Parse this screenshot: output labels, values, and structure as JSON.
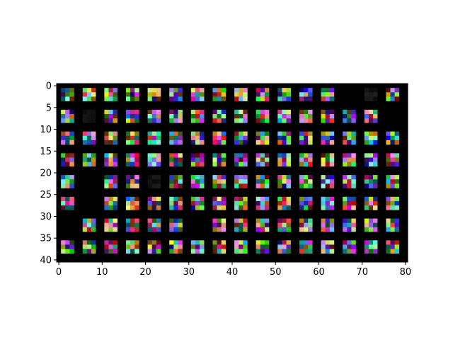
{
  "chart_data": {
    "type": "heatmap",
    "title": "",
    "xlabel": "",
    "ylabel": "",
    "xlim": [
      0,
      81
    ],
    "ylim": [
      0,
      41
    ],
    "y_inverted": true,
    "x_ticks": [
      "0",
      "10",
      "20",
      "30",
      "40",
      "50",
      "60",
      "70",
      "80"
    ],
    "y_ticks": [
      "0",
      "5",
      "10",
      "15",
      "20",
      "25",
      "30",
      "35",
      "40"
    ],
    "background_color": "#000000",
    "grid": false,
    "legend": "none",
    "tile_grid": {
      "rows": 8,
      "cols": 16,
      "tile_size": 3,
      "tile_pitch": 5
    },
    "tiles": [
      [
        1,
        1,
        1,
        1,
        1,
        1,
        1,
        1,
        1,
        1,
        1,
        1,
        1,
        0,
        2,
        1
      ],
      [
        1,
        2,
        1,
        1,
        1,
        1,
        1,
        1,
        1,
        1,
        1,
        1,
        1,
        1,
        1,
        0
      ],
      [
        1,
        1,
        1,
        1,
        1,
        1,
        1,
        1,
        1,
        1,
        1,
        1,
        1,
        1,
        1,
        1
      ],
      [
        1,
        1,
        1,
        1,
        1,
        1,
        1,
        1,
        1,
        1,
        1,
        1,
        1,
        1,
        1,
        1
      ],
      [
        1,
        0,
        1,
        1,
        2,
        1,
        1,
        1,
        1,
        1,
        1,
        1,
        1,
        1,
        1,
        1
      ],
      [
        1,
        0,
        1,
        1,
        1,
        1,
        1,
        1,
        1,
        1,
        1,
        1,
        1,
        1,
        1,
        1
      ],
      [
        0,
        1,
        1,
        1,
        1,
        1,
        0,
        1,
        1,
        1,
        1,
        1,
        1,
        1,
        1,
        1
      ],
      [
        1,
        1,
        1,
        1,
        1,
        1,
        1,
        1,
        1,
        1,
        1,
        1,
        1,
        1,
        1,
        1
      ]
    ]
  }
}
